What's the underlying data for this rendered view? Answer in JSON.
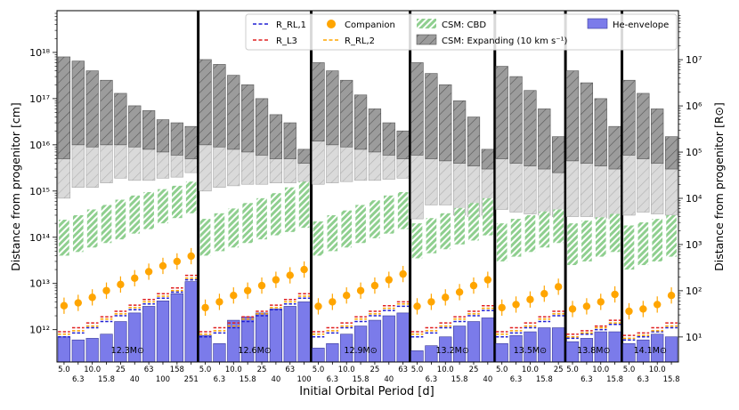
{
  "chart_data": {
    "type": "bar",
    "xlabel": "Initial Orbital Period [d]",
    "ylabel_left": "Distance from progenitor [cm]",
    "ylabel_right": "Distance from progenitor [R⊙]",
    "ylim_cm": [
      200000000000.0,
      8e+18
    ],
    "rsun_cm": 69570000000.0,
    "y_ticks_left": [
      {
        "value": 1000000000000.0,
        "label": "10¹²"
      },
      {
        "value": 10000000000000.0,
        "label": "10¹³"
      },
      {
        "value": 100000000000000.0,
        "label": "10¹⁴"
      },
      {
        "value": 1000000000000000.0,
        "label": "10¹⁵"
      },
      {
        "value": 1e+16,
        "label": "10¹⁶"
      },
      {
        "value": 1e+17,
        "label": "10¹⁷"
      },
      {
        "value": 1e+18,
        "label": "10¹⁸"
      }
    ],
    "y_ticks_right": [
      {
        "value": 10,
        "label": "10¹"
      },
      {
        "value": 100,
        "label": "10²"
      },
      {
        "value": 1000,
        "label": "10³"
      },
      {
        "value": 10000,
        "label": "10⁴"
      },
      {
        "value": 100000,
        "label": "10⁵"
      },
      {
        "value": 1000000,
        "label": "10⁶"
      },
      {
        "value": 10000000,
        "label": "10⁷"
      }
    ],
    "legend": {
      "rl1": "R_RL,1",
      "rl3": "R_L3",
      "companion": "Companion",
      "rl2": "R_RL,2",
      "cbd": "CSM: CBD",
      "expanding": "CSM: Expanding (10 km s⁻¹)",
      "henv": "He-envelope"
    },
    "colors": {
      "henv": "#7b7bea",
      "companion": "#ffa500",
      "rl1": "#1f1fd4",
      "rl3": "#e02020",
      "rl2": "#ffa500",
      "cbd": "#8fcf8f",
      "exp_dark": "#9a9a9a",
      "exp_light": "#dcdcdc"
    },
    "panels": [
      {
        "mass_label": "12.3M⊙",
        "periods": [
          "5.0",
          "6.3",
          "10.0",
          "15.8",
          "25",
          "40",
          "63",
          "100",
          "158",
          "251"
        ],
        "he_env": [
          700000000000.0,
          600000000000.0,
          650000000000.0,
          800000000000.0,
          1500000000000.0,
          2300000000000.0,
          3200000000000.0,
          4200000000000.0,
          6000000000000.0,
          11000000000000.0
        ],
        "rl1": [
          700000000000.0,
          850000000000.0,
          1100000000000.0,
          1500000000000.0,
          2000000000000.0,
          2700000000000.0,
          3600000000000.0,
          4800000000000.0,
          6500000000000.0,
          12000000000000.0
        ],
        "rl3": [
          900000000000.0,
          1100000000000.0,
          1400000000000.0,
          1900000000000.0,
          2500000000000.0,
          3400000000000.0,
          4500000000000.0,
          6000000000000.0,
          8000000000000.0,
          15000000000000.0
        ],
        "rl2": [
          800000000000.0,
          950000000000.0,
          1200000000000.0,
          1700000000000.0,
          2200000000000.0,
          3000000000000.0,
          4000000000000.0,
          5300000000000.0,
          7000000000000.0,
          13000000000000.0
        ],
        "companion": [
          3300000000000.0,
          3800000000000.0,
          5000000000000.0,
          7000000000000.0,
          9500000000000.0,
          13000000000000.0,
          18000000000000.0,
          24000000000000.0,
          30000000000000.0,
          39000000000000.0
        ],
        "cbd_low": [
          40000000000000.0,
          48000000000000.0,
          60000000000000.0,
          75000000000000.0,
          90000000000000.0,
          120000000000000.0,
          150000000000000.0,
          200000000000000.0,
          260000000000000.0,
          330000000000000.0
        ],
        "cbd_high": [
          240000000000000.0,
          300000000000000.0,
          400000000000000.0,
          500000000000000.0,
          650000000000000.0,
          800000000000000.0,
          950000000000000.0,
          1100000000000000.0,
          1300000000000000.0,
          1600000000000000.0
        ],
        "exp_low": [
          700000000000000.0,
          1200000000000000.0,
          1200000000000000.0,
          1500000000000000.0,
          1900000000000000.0,
          1700000000000000.0,
          1700000000000000.0,
          1900000000000000.0,
          2000000000000000.0,
          2500000000000000.0
        ],
        "exp_mid": [
          5000000000000000.0,
          1e+16,
          9000000000000000.0,
          1e+16,
          1e+16,
          9000000000000000.0,
          8000000000000000.0,
          7000000000000000.0,
          6000000000000000.0,
          5000000000000000.0
        ],
        "exp_high": [
          8e+17,
          6.5e+17,
          4e+17,
          2.5e+17,
          1.3e+17,
          7e+16,
          5.5e+16,
          3.5e+16,
          3e+16,
          2.5e+16
        ]
      },
      {
        "mass_label": "12.6M⊙",
        "periods": [
          "5.0",
          "6.3",
          "10.0",
          "15.8",
          "25",
          "40",
          "63",
          "100"
        ],
        "he_env": [
          750000000000.0,
          500000000000.0,
          1600000000000.0,
          1900000000000.0,
          2300000000000.0,
          2800000000000.0,
          3200000000000.0,
          4000000000000.0
        ],
        "rl1": [
          700000000000.0,
          850000000000.0,
          1100000000000.0,
          1500000000000.0,
          2000000000000.0,
          2700000000000.0,
          3600000000000.0,
          4800000000000.0
        ],
        "rl3": [
          900000000000.0,
          1100000000000.0,
          1400000000000.0,
          1900000000000.0,
          2500000000000.0,
          3400000000000.0,
          4500000000000.0,
          6000000000000.0
        ],
        "rl2": [
          800000000000.0,
          950000000000.0,
          1200000000000.0,
          1700000000000.0,
          2200000000000.0,
          3000000000000.0,
          4000000000000.0,
          5300000000000.0
        ],
        "companion": [
          3000000000000.0,
          4000000000000.0,
          5500000000000.0,
          7000000000000.0,
          9000000000000.0,
          12000000000000.0,
          15000000000000.0,
          20000000000000.0
        ],
        "cbd_low": [
          40000000000000.0,
          50000000000000.0,
          60000000000000.0,
          75000000000000.0,
          90000000000000.0,
          110000000000000.0,
          130000000000000.0,
          160000000000000.0
        ],
        "cbd_high": [
          250000000000000.0,
          330000000000000.0,
          420000000000000.0,
          550000000000000.0,
          700000000000000.0,
          900000000000000.0,
          1200000000000000.0,
          1600000000000000.0
        ],
        "exp_low": [
          1000000000000000.0,
          1200000000000000.0,
          1300000000000000.0,
          1400000000000000.0,
          1400000000000000.0,
          1500000000000000.0,
          1500000000000000.0,
          1600000000000000.0
        ],
        "exp_mid": [
          1e+16,
          9000000000000000.0,
          8000000000000000.0,
          7000000000000000.0,
          6000000000000000.0,
          5000000000000000.0,
          5000000000000000.0,
          4000000000000000.0
        ],
        "exp_high": [
          7e+17,
          5.5e+17,
          3.2e+17,
          2e+17,
          1e+17,
          4.5e+16,
          3e+16,
          8000000000000000.0
        ]
      },
      {
        "mass_label": "12.9M⊙",
        "periods": [
          "5.0",
          "6.3",
          "10.0",
          "15.8",
          "25",
          "40",
          "63"
        ],
        "he_env": [
          400000000000.0,
          500000000000.0,
          800000000000.0,
          1200000000000.0,
          1600000000000.0,
          2000000000000.0,
          2300000000000.0
        ],
        "rl1": [
          700000000000.0,
          850000000000.0,
          1100000000000.0,
          1500000000000.0,
          2000000000000.0,
          2600000000000.0,
          3200000000000.0
        ],
        "rl3": [
          900000000000.0,
          1100000000000.0,
          1400000000000.0,
          1900000000000.0,
          2500000000000.0,
          3300000000000.0,
          4000000000000.0
        ],
        "rl2": [
          800000000000.0,
          950000000000.0,
          1200000000000.0,
          1700000000000.0,
          2200000000000.0,
          2900000000000.0,
          3600000000000.0
        ],
        "companion": [
          3200000000000.0,
          4000000000000.0,
          5500000000000.0,
          7000000000000.0,
          9000000000000.0,
          12000000000000.0,
          16000000000000.0
        ],
        "cbd_low": [
          40000000000000.0,
          50000000000000.0,
          60000000000000.0,
          75000000000000.0,
          95000000000000.0,
          120000000000000.0,
          150000000000000.0
        ],
        "cbd_high": [
          220000000000000.0,
          300000000000000.0,
          380000000000000.0,
          500000000000000.0,
          630000000000000.0,
          800000000000000.0,
          950000000000000.0
        ],
        "exp_low": [
          1400000000000000.0,
          1500000000000000.0,
          1600000000000000.0,
          1700000000000000.0,
          1700000000000000.0,
          1800000000000000.0,
          1900000000000000.0
        ],
        "exp_mid": [
          1.2e+16,
          1e+16,
          9000000000000000.0,
          8000000000000000.0,
          7000000000000000.0,
          6000000000000000.0,
          5000000000000000.0
        ],
        "exp_high": [
          6e+17,
          4e+17,
          2.5e+17,
          1.2e+17,
          6e+16,
          3e+16,
          2e+16
        ]
      },
      {
        "mass_label": "13.2M⊙",
        "periods": [
          "5.0",
          "6.3",
          "10.0",
          "15.8",
          "25",
          "40"
        ],
        "he_env": [
          350000000000.0,
          450000000000.0,
          700000000000.0,
          1200000000000.0,
          1500000000000.0,
          1800000000000.0
        ],
        "rl1": [
          700000000000.0,
          850000000000.0,
          1100000000000.0,
          1500000000000.0,
          2000000000000.0,
          2600000000000.0
        ],
        "rl3": [
          900000000000.0,
          1100000000000.0,
          1400000000000.0,
          1900000000000.0,
          2500000000000.0,
          3300000000000.0
        ],
        "rl2": [
          800000000000.0,
          950000000000.0,
          1200000000000.0,
          1700000000000.0,
          2200000000000.0,
          2900000000000.0
        ],
        "companion": [
          3200000000000.0,
          4000000000000.0,
          5000000000000.0,
          6500000000000.0,
          9000000000000.0,
          12000000000000.0
        ],
        "cbd_low": [
          35000000000000.0,
          45000000000000.0,
          55000000000000.0,
          70000000000000.0,
          85000000000000.0,
          110000000000000.0
        ],
        "cbd_high": [
          200000000000000.0,
          260000000000000.0,
          330000000000000.0,
          430000000000000.0,
          550000000000000.0,
          700000000000000.0
        ],
        "exp_low": [
          250000000000000.0,
          500000000000000.0,
          500000000000000.0,
          300000000000000.0,
          280000000000000.0,
          300000000000000.0
        ],
        "exp_mid": [
          6000000000000000.0,
          5000000000000000.0,
          4500000000000000.0,
          4000000000000000.0,
          3500000000000000.0,
          3000000000000000.0
        ],
        "exp_high": [
          6e+17,
          3.5e+17,
          2e+17,
          9e+16,
          4e+16,
          8000000000000000.0
        ]
      },
      {
        "mass_label": "13.5M⊙",
        "periods": [
          "5.0",
          "6.3",
          "10.0",
          "15.8",
          "25"
        ],
        "he_env": [
          500000000000.0,
          750000000000.0,
          900000000000.0,
          1100000000000.0,
          1100000000000.0
        ],
        "rl1": [
          700000000000.0,
          850000000000.0,
          1100000000000.0,
          1500000000000.0,
          2000000000000.0
        ],
        "rl3": [
          900000000000.0,
          1100000000000.0,
          1400000000000.0,
          1900000000000.0,
          2500000000000.0
        ],
        "rl2": [
          800000000000.0,
          950000000000.0,
          1200000000000.0,
          1700000000000.0,
          2200000000000.0
        ],
        "companion": [
          3000000000000.0,
          3500000000000.0,
          4500000000000.0,
          6000000000000.0,
          8500000000000.0
        ],
        "cbd_low": [
          30000000000000.0,
          38000000000000.0,
          48000000000000.0,
          60000000000000.0,
          75000000000000.0
        ],
        "cbd_high": [
          200000000000000.0,
          250000000000000.0,
          300000000000000.0,
          360000000000000.0,
          400000000000000.0
        ],
        "exp_low": [
          400000000000000.0,
          350000000000000.0,
          320000000000000.0,
          300000000000000.0,
          280000000000000.0
        ],
        "exp_mid": [
          5000000000000000.0,
          4000000000000000.0,
          3500000000000000.0,
          3000000000000000.0,
          2500000000000000.0
        ],
        "exp_high": [
          5e+17,
          3e+17,
          1.5e+17,
          6e+16,
          1.5e+16
        ]
      },
      {
        "mass_label": "13.8M⊙",
        "periods": [
          "5.0",
          "6.3",
          "10.0",
          "15.8"
        ],
        "he_env": [
          550000000000.0,
          650000000000.0,
          900000000000.0,
          900000000000.0
        ],
        "rl1": [
          650000000000.0,
          800000000000.0,
          1000000000000.0,
          1300000000000.0
        ],
        "rl3": [
          800000000000.0,
          950000000000.0,
          1200000000000.0,
          1600000000000.0
        ],
        "rl2": [
          700000000000.0,
          850000000000.0,
          1100000000000.0,
          1400000000000.0
        ],
        "companion": [
          2800000000000.0,
          3200000000000.0,
          4000000000000.0,
          5800000000000.0
        ],
        "cbd_low": [
          25000000000000.0,
          30000000000000.0,
          38000000000000.0,
          48000000000000.0
        ],
        "cbd_high": [
          200000000000000.0,
          230000000000000.0,
          270000000000000.0,
          320000000000000.0
        ],
        "exp_low": [
          280000000000000.0,
          280000000000000.0,
          260000000000000.0,
          250000000000000.0
        ],
        "exp_mid": [
          4500000000000000.0,
          4000000000000000.0,
          3500000000000000.0,
          3000000000000000.0
        ],
        "exp_high": [
          4e+17,
          2.2e+17,
          1e+17,
          2.5e+16
        ]
      },
      {
        "mass_label": "14.1M⊙",
        "periods": [
          "5.0",
          "6.3",
          "10.0",
          "15.8"
        ],
        "he_env": [
          500000000000.0,
          600000000000.0,
          800000000000.0,
          700000000000.0
        ],
        "rl1": [
          600000000000.0,
          700000000000.0,
          900000000000.0,
          1100000000000.0
        ],
        "rl3": [
          750000000000.0,
          850000000000.0,
          1100000000000.0,
          1400000000000.0
        ],
        "rl2": [
          650000000000.0,
          750000000000.0,
          950000000000.0,
          1200000000000.0
        ],
        "companion": [
          2500000000000.0,
          2800000000000.0,
          3500000000000.0,
          5500000000000.0
        ],
        "cbd_low": [
          20000000000000.0,
          25000000000000.0,
          30000000000000.0,
          38000000000000.0
        ],
        "cbd_high": [
          180000000000000.0,
          210000000000000.0,
          250000000000000.0,
          300000000000000.0
        ],
        "exp_low": [
          300000000000000.0,
          350000000000000.0,
          320000000000000.0,
          300000000000000.0
        ],
        "exp_mid": [
          6000000000000000.0,
          5000000000000000.0,
          4000000000000000.0,
          3000000000000000.0
        ],
        "exp_high": [
          2.5e+17,
          1.3e+17,
          6e+16,
          1.5e+16
        ]
      }
    ]
  }
}
